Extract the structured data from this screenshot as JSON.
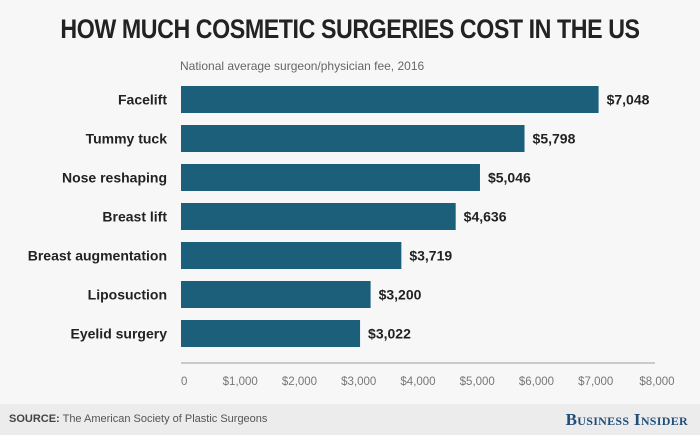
{
  "chart_data": {
    "type": "bar",
    "orientation": "horizontal",
    "title": "HOW MUCH COSMETIC SURGERIES COST IN THE US",
    "subtitle": "National average surgeon/physician fee, 2016",
    "categories": [
      "Facelift",
      "Tummy tuck",
      "Nose reshaping",
      "Breast lift",
      "Breast augmentation",
      "Liposuction",
      "Eyelid surgery"
    ],
    "values": [
      7048,
      5798,
      5046,
      4636,
      3719,
      3200,
      3022
    ],
    "data_labels": [
      "$7,048",
      "$5,798",
      "$5,046",
      "$4,636",
      "$3,719",
      "$3,200",
      "$3,022"
    ],
    "xlim": [
      0,
      8000
    ],
    "x_ticks": [
      0,
      1000,
      2000,
      3000,
      4000,
      5000,
      6000,
      7000,
      8000
    ],
    "x_tick_labels": [
      "0",
      "$1,000",
      "$2,000",
      "$3,000",
      "$4,000",
      "$5,000",
      "$6,000",
      "$7,000",
      "$8,000"
    ],
    "grid": false,
    "bar_color": "#1b5f7a"
  },
  "footer": {
    "source_label": "SOURCE:",
    "source_text": "The American Society of Plastic Surgeons",
    "brand": "Business Insider"
  }
}
